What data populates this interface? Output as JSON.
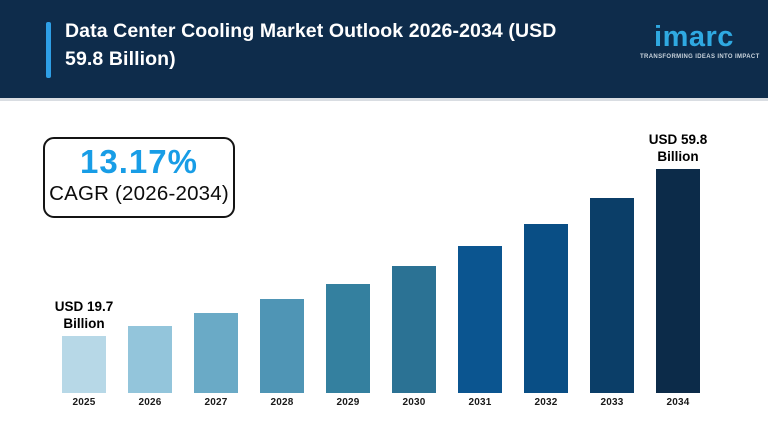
{
  "header": {
    "title": "Data Center Cooling Market Outlook 2026-2034 (USD 59.8 Billion)",
    "logo": {
      "brand": "imarc",
      "tagline": "TRANSFORMING IDEAS INTO IMPACT"
    },
    "colors": {
      "background": "#0e2c4b",
      "accent_bar": "#2e9fe6",
      "brand_blue": "#2fa9e1"
    }
  },
  "cagr_box": {
    "value": "13.17%",
    "label": "CAGR (2026-2034)",
    "value_color": "#189de6"
  },
  "chart_data": {
    "type": "bar",
    "title": "Data Center Cooling Market Outlook 2026-2034 (USD 59.8 Billion)",
    "unit": "USD Billion",
    "categories": [
      "2025",
      "2026",
      "2027",
      "2028",
      "2029",
      "2030",
      "2031",
      "2032",
      "2033",
      "2034"
    ],
    "values": [
      19.7,
      22.2,
      25.2,
      28.5,
      32.2,
      36.5,
      41.3,
      46.7,
      52.8,
      59.8
    ],
    "labeled_points": [
      {
        "category": "2025",
        "label_lines": [
          "USD 19.7",
          "Billion"
        ],
        "value": 19.7
      },
      {
        "category": "2034",
        "label_lines": [
          "USD 59.8",
          "Billion"
        ],
        "value": 59.8
      }
    ],
    "bar_colors": [
      "#b7d8e7",
      "#93c5db",
      "#6aaac6",
      "#4f95b5",
      "#34809f",
      "#2b7294",
      "#0b5590",
      "#094e85",
      "#0b3e68",
      "#0c2b49"
    ],
    "cagr_percent": 13.17,
    "cagr_period": "2026-2034",
    "xlabel": "",
    "ylabel": "",
    "grid": false,
    "legend": "none",
    "axes_hidden": true
  }
}
